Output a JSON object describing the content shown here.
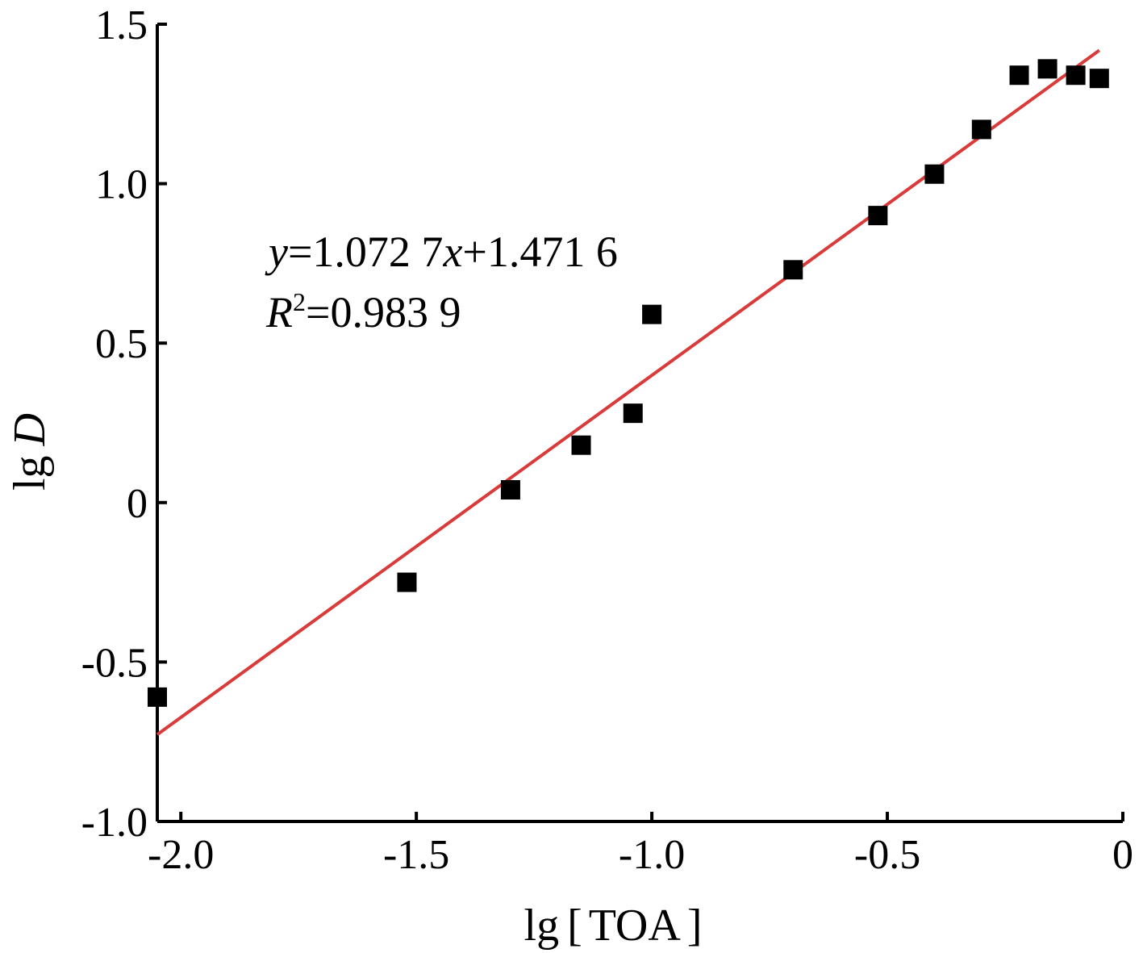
{
  "chart_data": {
    "type": "scatter",
    "xlabel": {
      "prefix": "lg",
      "open_bracket": "[",
      "name": "TOA",
      "close_bracket": "]"
    },
    "ylabel": {
      "prefix": "lg",
      "variable": "D"
    },
    "xlim": [
      -2.05,
      0
    ],
    "ylim": [
      -1.0,
      1.5
    ],
    "x_ticks": [
      {
        "value": -2.0,
        "label": "-2.0"
      },
      {
        "value": -1.5,
        "label": "-1.5"
      },
      {
        "value": -1.0,
        "label": "-1.0"
      },
      {
        "value": -0.5,
        "label": "-0.5"
      },
      {
        "value": 0,
        "label": "0"
      }
    ],
    "y_ticks": [
      {
        "value": -1.0,
        "label": "-1.0"
      },
      {
        "value": -0.5,
        "label": "-0.5"
      },
      {
        "value": 0,
        "label": "0"
      },
      {
        "value": 0.5,
        "label": "0.5"
      },
      {
        "value": 1.0,
        "label": "1.0"
      },
      {
        "value": 1.5,
        "label": "1.5"
      }
    ],
    "points": [
      {
        "x": -2.05,
        "y": -0.61
      },
      {
        "x": -1.52,
        "y": -0.25
      },
      {
        "x": -1.3,
        "y": 0.04
      },
      {
        "x": -1.15,
        "y": 0.18
      },
      {
        "x": -1.04,
        "y": 0.28
      },
      {
        "x": -1.0,
        "y": 0.59
      },
      {
        "x": -0.7,
        "y": 0.73
      },
      {
        "x": -0.52,
        "y": 0.9
      },
      {
        "x": -0.4,
        "y": 1.03
      },
      {
        "x": -0.3,
        "y": 1.17
      },
      {
        "x": -0.22,
        "y": 1.34
      },
      {
        "x": -0.16,
        "y": 1.36
      },
      {
        "x": -0.1,
        "y": 1.34
      },
      {
        "x": -0.05,
        "y": 1.33
      }
    ],
    "marker_color": "#000000",
    "fit_line": {
      "slope": 1.0727,
      "intercept": 1.4716,
      "x_range": [
        -2.05,
        -0.05
      ],
      "color": "#d93a3a"
    },
    "annotation": {
      "y_var": "y",
      "eq": "=1.072 7",
      "x_var": "x",
      "rest": "+1.471 6",
      "r_var": "R",
      "r_sup": "2",
      "r_val": "=0.983 9"
    },
    "grid": false,
    "legend": "none"
  }
}
